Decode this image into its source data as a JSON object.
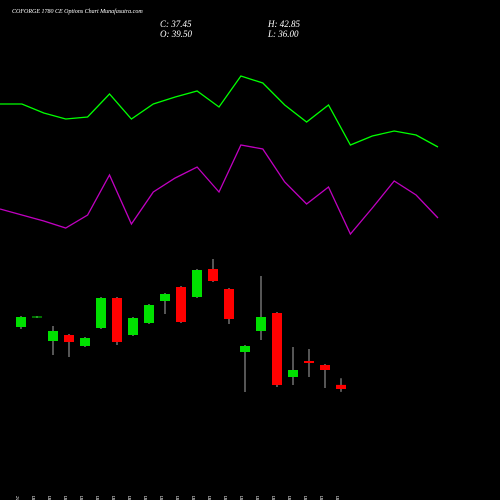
{
  "chart_data": {
    "type": "candlestick",
    "title": "COFORGE 1780 CE Options Chart Munafasutra.com",
    "header": [
      "C: 37.45",
      "O: 39.50",
      "H: 42.85",
      "L: 36.00"
    ],
    "categories": [
      "31 Dec",
      "01 Jan",
      "02 Jan",
      "03 Jan",
      "06 Jan",
      "07 Jan",
      "08 Jan",
      "09 Jan",
      "10 Jan",
      "13 Jan",
      "14 Jan",
      "15 Jan",
      "16 Jan",
      "17 Jan",
      "20 Jan",
      "21 Jan",
      "22 Jan",
      "23 Jan",
      "27 Jan",
      "29 Jan",
      "30 Jan"
    ],
    "open": [
      68.45,
      73.45,
      61.45,
      64.45,
      58.95,
      67.95,
      82.95,
      64.45,
      70.45,
      81.45,
      88.45,
      83.45,
      97.45,
      87.45,
      55.95,
      66.45,
      75.45,
      43.45,
      51.45,
      49.45,
      39.5
    ],
    "high": [
      73.95,
      73.95,
      68.95,
      64.95,
      63.45,
      83.45,
      83.45,
      73.45,
      79.95,
      85.45,
      88.95,
      97.45,
      102.45,
      87.95,
      59.45,
      93.95,
      75.95,
      58.45,
      57.45,
      49.95,
      42.85
    ],
    "low": [
      67.45,
      72.95,
      54.45,
      53.45,
      58.45,
      67.45,
      59.45,
      63.95,
      69.95,
      74.95,
      70.45,
      82.95,
      90.95,
      69.95,
      35.95,
      61.95,
      38.45,
      39.45,
      43.45,
      37.95,
      36.0
    ],
    "close": [
      73.45,
      73.7,
      66.45,
      60.95,
      62.95,
      82.95,
      60.95,
      72.95,
      79.45,
      84.95,
      70.95,
      96.95,
      91.45,
      72.45,
      58.95,
      73.45,
      39.45,
      46.95,
      50.45,
      46.95,
      37.45
    ],
    "up_color": "#00e000",
    "down_color": "#ff0000",
    "series": [
      {
        "color": "#00ff00",
        "values": [
          179.95,
          179.95,
          175.45,
          172.45,
          173.45,
          184.95,
          172.45,
          179.95,
          183.45,
          186.45,
          178.45,
          193.95,
          190.45,
          179.45,
          170.95,
          179.45,
          159.45,
          163.95,
          166.45,
          164.45,
          158.45
        ]
      },
      {
        "color": "#c000c0",
        "values": [
          127.45,
          124.45,
          121.45,
          117.95,
          124.45,
          144.45,
          119.95,
          135.95,
          142.95,
          148.45,
          135.95,
          159.45,
          157.45,
          140.95,
          129.95,
          138.45,
          114.95,
          127.95,
          141.45,
          134.45,
          122.95
        ]
      }
    ],
    "ylim": [
      30,
      220
    ]
  }
}
